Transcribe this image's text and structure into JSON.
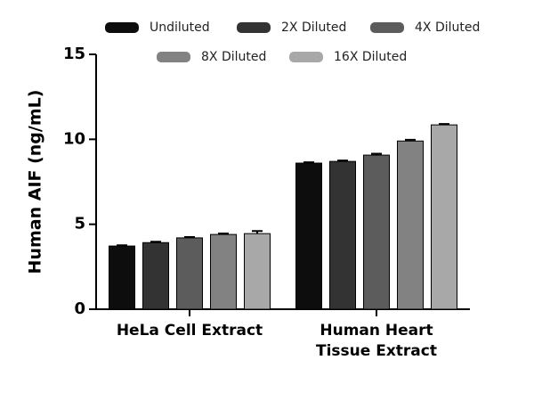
{
  "chart_data": {
    "type": "bar",
    "y_label": "Human AIF (ng/mL)",
    "categories": [
      "HeLa Cell Extract",
      "Human Heart\nTissue Extract"
    ],
    "series": [
      {
        "name": "Undiluted",
        "color": "#0d0d0d",
        "values": [
          3.72,
          8.6
        ],
        "errors": [
          0.04,
          0.05
        ]
      },
      {
        "name": "2X Diluted",
        "color": "#333333",
        "values": [
          3.92,
          8.7
        ],
        "errors": [
          0.05,
          0.05
        ]
      },
      {
        "name": "4X Diluted",
        "color": "#5c5c5c",
        "values": [
          4.2,
          9.07
        ],
        "errors": [
          0.05,
          0.08
        ]
      },
      {
        "name": "8X Diluted",
        "color": "#828282",
        "values": [
          4.4,
          9.9
        ],
        "errors": [
          0.06,
          0.07
        ]
      },
      {
        "name": "16X Diluted",
        "color": "#a8a8a8",
        "values": [
          4.45,
          10.85
        ],
        "errors": [
          0.15,
          0.05
        ]
      }
    ],
    "ylim": [
      0,
      15
    ],
    "yticks": [
      0,
      5,
      10,
      15
    ],
    "grid": false
  }
}
